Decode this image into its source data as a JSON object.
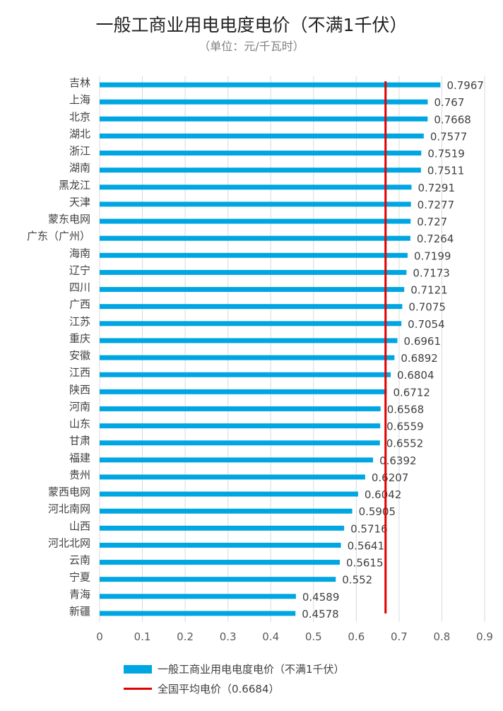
{
  "chart_data": {
    "type": "bar",
    "orientation": "horizontal",
    "title": "一般工商业用电电度电价（不满1千伏）",
    "subtitle": "（单位：元/千瓦时）",
    "categories": [
      "吉林",
      "上海",
      "北京",
      "湖北",
      "浙江",
      "湖南",
      "黑龙江",
      "天津",
      "蒙东电网",
      "广东（广州）",
      "海南",
      "辽宁",
      "四川",
      "广西",
      "江苏",
      "重庆",
      "安徽",
      "江西",
      "陕西",
      "河南",
      "山东",
      "甘肃",
      "福建",
      "贵州",
      "蒙西电网",
      "河北南网",
      "山西",
      "河北北网",
      "云南",
      "宁夏",
      "青海",
      "新疆"
    ],
    "series": [
      {
        "name": "一般工商业用电电度电价（不满1千伏）",
        "color": "#00a6e2",
        "values": [
          0.7967,
          0.767,
          0.7668,
          0.7577,
          0.7519,
          0.7511,
          0.7291,
          0.7277,
          0.727,
          0.7264,
          0.7199,
          0.7173,
          0.7121,
          0.7075,
          0.7054,
          0.6961,
          0.6892,
          0.6804,
          0.6712,
          0.6568,
          0.6559,
          0.6552,
          0.6392,
          0.6207,
          0.6042,
          0.5905,
          0.5716,
          0.5641,
          0.5615,
          0.552,
          0.4589,
          0.4578
        ]
      }
    ],
    "reference_line": {
      "name": "全国平均电价（0.6684）",
      "value": 0.6684,
      "color": "#e00000"
    },
    "xlim": [
      0,
      0.9
    ],
    "xticks": [
      "0",
      "0.1",
      "0.2",
      "0.3",
      "0.4",
      "0.5",
      "0.6",
      "0.7",
      "0.8",
      "0.9"
    ],
    "grid": true,
    "legend_placement": "bottom"
  }
}
